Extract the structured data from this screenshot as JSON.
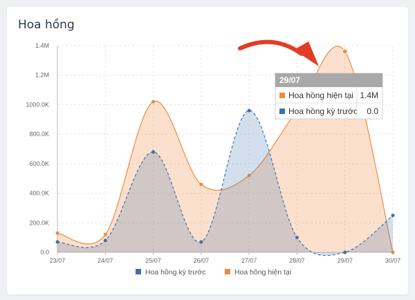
{
  "card": {
    "title": "Hoa hồng"
  },
  "chart_data": {
    "type": "area",
    "categories": [
      "23/07",
      "24/07",
      "25/07",
      "26/07",
      "27/07",
      "28/07",
      "29/07",
      "30/07"
    ],
    "yticks": [
      "0.0",
      "200.0K",
      "400.0K",
      "600.0K",
      "800.0K",
      "1000.0K",
      "1.2M",
      "1.4M"
    ],
    "ylim": [
      0,
      1400000
    ],
    "grid": true,
    "legend_position": "bottom",
    "series": [
      {
        "name": "Hoa hồng hiện tại",
        "color": "#f08a3e",
        "line_style": "solid",
        "values": [
          130000,
          120000,
          1020000,
          460000,
          520000,
          960000,
          1360000,
          0
        ]
      },
      {
        "name": "Hoa hồng kỳ trước",
        "color": "#3d6fae",
        "line_style": "dashed",
        "values": [
          70000,
          80000,
          680000,
          70000,
          960000,
          100000,
          0,
          250000
        ]
      }
    ],
    "tooltip": {
      "title": "29/07",
      "rows": [
        {
          "label": "Hoa hồng hiện tại",
          "value": "1.4M",
          "color": "#f08a3e"
        },
        {
          "label": "Hoa hồng kỳ trước",
          "value": "0.0",
          "color": "#3d6fae"
        }
      ]
    },
    "annotation": {
      "type": "arrow",
      "color": "#e23c25"
    }
  }
}
